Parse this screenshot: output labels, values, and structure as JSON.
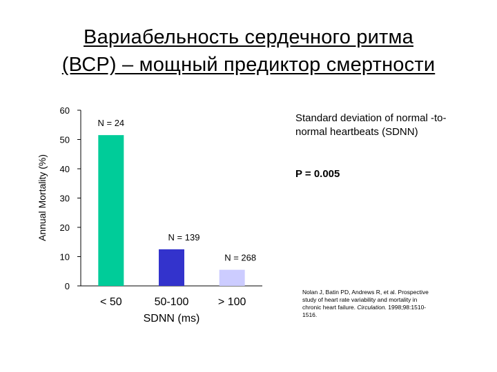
{
  "slide": {
    "title_line1": "Вариабельность сердечного ритма",
    "title_line2": "(ВСР) – мощный предиктор смертности",
    "info_text": "Standard deviation of normal -to-normal heartbeats (SDNN)",
    "p_value": "P = 0.005",
    "citation": {
      "text": "Nolan J, Batin PD, Andrews R, et al. Prospective study of heart rate variability and mortality in chronic heart failure.",
      "journal": "Circulation.",
      "ref": "1998;98:1510-1516."
    }
  },
  "chart_data": {
    "type": "bar",
    "categories": [
      "< 50",
      "50-100",
      "> 100"
    ],
    "values": [
      51.5,
      12.5,
      5.5
    ],
    "bar_labels": [
      "N = 24",
      "N = 139",
      "N = 268"
    ],
    "colors": [
      "#00cc99",
      "#3333cc",
      "#ccccff"
    ],
    "xlabel": "SDNN (ms)",
    "ylabel": "Annual Mortality (%)",
    "ylim": [
      0,
      60
    ],
    "yticks": [
      0,
      10,
      20,
      30,
      40,
      50,
      60
    ],
    "grid": false
  }
}
